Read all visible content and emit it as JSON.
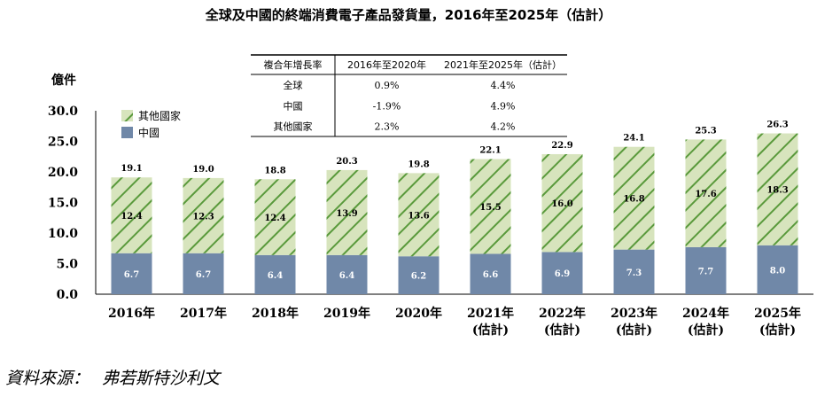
{
  "chart_data": {
    "type": "bar",
    "title": "全球及中國的終端消費電子產品發貨量，2016年至2025年（估計）",
    "ylabel": "億件",
    "xlabel": "",
    "ylim": [
      0,
      30
    ],
    "yticks": [
      "0.0",
      "5.0",
      "10.0",
      "15.0",
      "20.0",
      "25.0",
      "30.0"
    ],
    "stacked": true,
    "grid": false,
    "legend_position": "top-left",
    "categories": [
      "2016年",
      "2017年",
      "2018年",
      "2019年",
      "2020年",
      "2021年",
      "2022年",
      "2023年",
      "2024年",
      "2025年"
    ],
    "category_sublabels": [
      "",
      "",
      "",
      "",
      "",
      "(估計)",
      "(估計)",
      "(估計)",
      "(估計)",
      "(估計)"
    ],
    "series": [
      {
        "name": "中國",
        "values": [
          6.7,
          6.7,
          6.4,
          6.4,
          6.2,
          6.6,
          6.9,
          7.3,
          7.7,
          8.0
        ],
        "labels": [
          "6.7",
          "6.7",
          "6.4",
          "6.4",
          "6.2",
          "6.6",
          "6.9",
          "7.3",
          "7.7",
          "8.0"
        ]
      },
      {
        "name": "其他國家",
        "values": [
          12.4,
          12.3,
          12.4,
          13.9,
          13.6,
          15.5,
          16.0,
          16.8,
          17.6,
          18.3
        ],
        "labels": [
          "12.4",
          "12.3",
          "12.4",
          "13.9",
          "13.6",
          "15.5",
          "16.0",
          "16.8",
          "17.6",
          "18.3"
        ]
      }
    ],
    "totals": [
      19.1,
      19.0,
      18.8,
      20.3,
      19.8,
      22.1,
      22.9,
      24.1,
      25.3,
      26.3
    ],
    "total_labels": [
      "19.1",
      "19.0",
      "18.8",
      "20.3",
      "19.8",
      "22.1",
      "22.9",
      "24.1",
      "25.3",
      "26.3"
    ],
    "cagr_table": {
      "headers": [
        "複合年增長率",
        "2016年至2020年",
        "2021年至2025年（估計）"
      ],
      "rows": [
        [
          "全球",
          "0.9%",
          "4.4%"
        ],
        [
          "中國",
          "-1.9%",
          "4.9%"
        ],
        [
          "其他國家",
          "2.3%",
          "4.2%"
        ]
      ]
    }
  },
  "colors": {
    "china": "#7088a8",
    "other_fill": "#d7e4bd",
    "other_hatch": "#5a9a3c",
    "axis": "#000000"
  },
  "source": {
    "label": "資料來源：",
    "value": "弗若斯特沙利文"
  }
}
